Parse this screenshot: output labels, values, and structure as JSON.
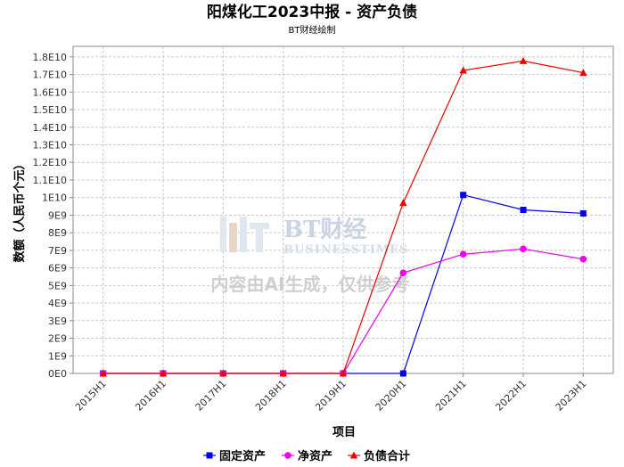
{
  "chart_data": {
    "type": "line",
    "title": "阳煤化工2023中报 - 资产负债",
    "subtitle": "BT财经绘制",
    "xlabel": "项目",
    "ylabel": "数额（人民币个元）",
    "categories": [
      "2015H1",
      "2016H1",
      "2017H1",
      "2018H1",
      "2019H1",
      "2020H1",
      "2021H1",
      "2022H1",
      "2023H1"
    ],
    "ylim": [
      0,
      18600000000
    ],
    "y_ticks": [
      0,
      1000000000,
      2000000000,
      3000000000,
      4000000000,
      5000000000,
      6000000000,
      7000000000,
      8000000000,
      9000000000,
      10000000000,
      11000000000,
      12000000000,
      13000000000,
      14000000000,
      15000000000,
      16000000000,
      17000000000,
      18000000000
    ],
    "y_tick_labels": [
      "0E0",
      "1E9",
      "2E9",
      "3E9",
      "4E9",
      "5E9",
      "6E9",
      "7E9",
      "8E9",
      "9E9",
      "1E10",
      "1.1E10",
      "1.2E10",
      "1.3E10",
      "1.4E10",
      "1.5E10",
      "1.6E10",
      "1.7E10",
      "1.8E10"
    ],
    "grid": true,
    "legend_position": "bottom",
    "series": [
      {
        "name": "固定资产",
        "color": "#0000ee",
        "marker": "square",
        "values": [
          0,
          0,
          0,
          0,
          0,
          0,
          10150000000,
          9300000000,
          9100000000
        ]
      },
      {
        "name": "净资产",
        "color": "#ee00ee",
        "marker": "circle",
        "values": [
          0,
          0,
          0,
          0,
          0,
          5720000000,
          6780000000,
          7080000000,
          6500000000
        ]
      },
      {
        "name": "负债合计",
        "color": "#ee0000",
        "marker": "triangle",
        "values": [
          0,
          0,
          0,
          0,
          0,
          9700000000,
          17230000000,
          17770000000,
          17100000000
        ]
      }
    ],
    "watermark": {
      "logo": "BT财经",
      "sub": "BUSINESSTIMES",
      "note": "内容由AI生成，仅供参考"
    }
  }
}
